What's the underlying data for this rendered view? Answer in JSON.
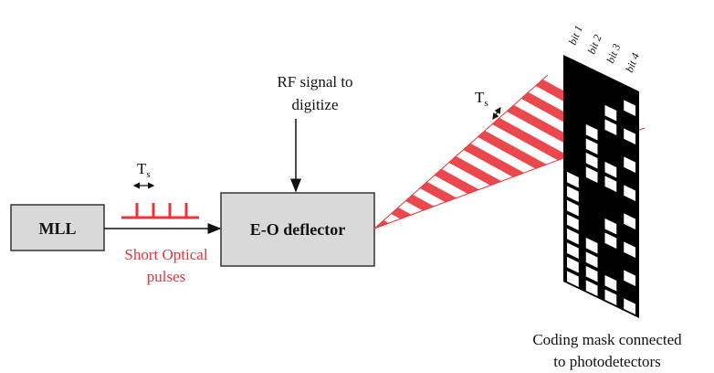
{
  "nodes": [
    {
      "label": "MLL"
    },
    {
      "label": "E-O deflector"
    }
  ],
  "labels": {
    "rf_signal": [
      "RF signal to",
      "digitize"
    ],
    "pulses": [
      "Short Optical",
      "pulses"
    ],
    "mask": [
      "Coding mask connected",
      "to photodetectors"
    ],
    "ts_pulse": {
      "main": "T",
      "sub": "s"
    },
    "ts_beam": {
      "main": "T",
      "sub": "s"
    },
    "bits": [
      "bit 1",
      "bit 2",
      "bit 3",
      "bit 4"
    ]
  }
}
